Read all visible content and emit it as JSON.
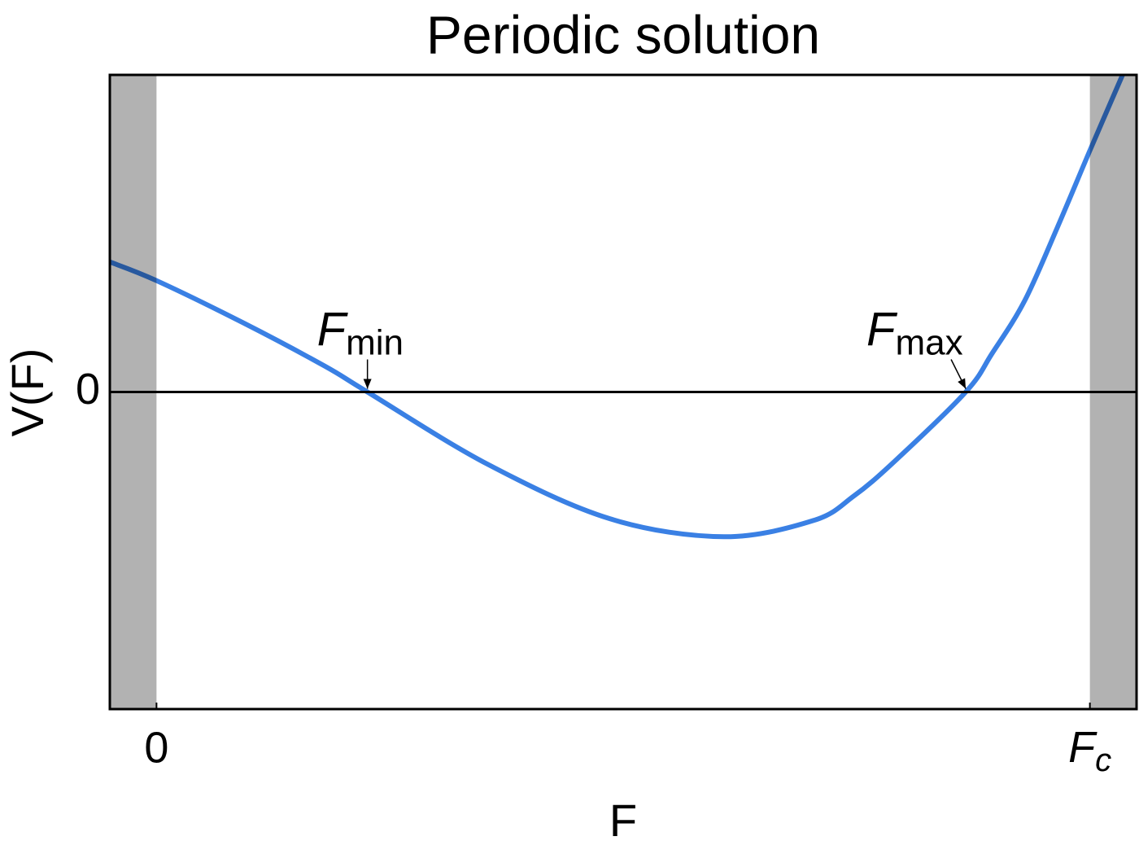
{
  "chart_data": {
    "type": "line",
    "title": "Periodic solution",
    "xlabel": "F",
    "ylabel": "V(F)",
    "xlim": [
      -0.05,
      1.05
    ],
    "ylim": [
      -3.9,
      3.9
    ],
    "xticks": [
      0,
      {
        "value": 1,
        "label": "F",
        "label_subscript": "c"
      }
    ],
    "yticks": [
      0
    ],
    "zero_line": true,
    "shaded_regions": [
      [
        -0.05,
        0
      ],
      [
        1,
        1.05
      ]
    ],
    "shade_color": "#000000",
    "shade_opacity": 0.3,
    "series": [
      {
        "color": "#3a80e4",
        "x": [
          -0.05,
          0,
          0.093,
          0.18,
          0.226,
          0.355,
          0.486,
          0.608,
          0.704,
          0.747,
          0.791,
          0.867,
          0.895,
          0.93,
          0.965,
          1.0,
          1.035
        ],
        "values": [
          1.6,
          1.37,
          0.85,
          0.32,
          0,
          -0.89,
          -1.56,
          -1.78,
          -1.58,
          -1.28,
          -0.85,
          0,
          0.47,
          1.12,
          2.02,
          2.97,
          3.9
        ]
      }
    ],
    "annotations": [
      {
        "text": "F",
        "subscript": "min",
        "x": 0.226,
        "y": 0
      },
      {
        "text": "F",
        "subscript": "max",
        "x": 0.867,
        "y": 0
      }
    ]
  }
}
